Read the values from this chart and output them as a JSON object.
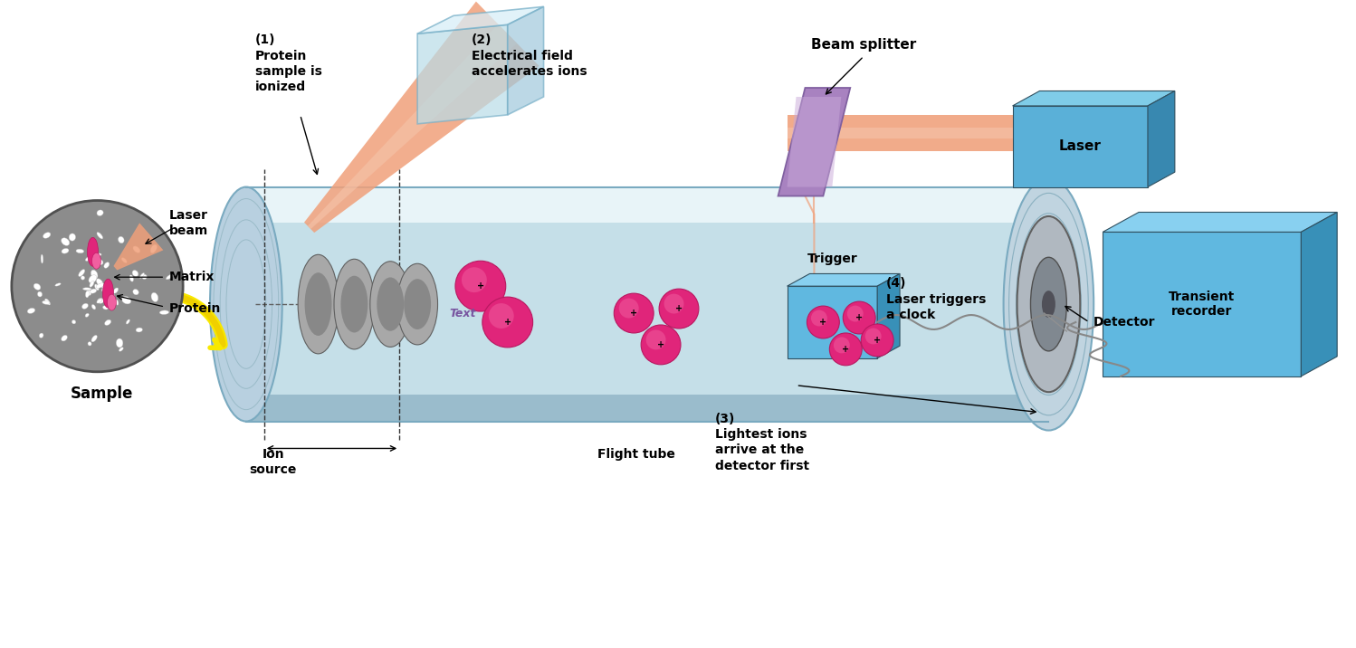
{
  "bg_color": "#ffffff",
  "labels": {
    "sample": "Sample",
    "laser_beam": "Laser\nbeam",
    "matrix": "Matrix",
    "protein": "Protein",
    "ion_source": "Ion\nsource",
    "flight_tube": "Flight tube",
    "detector": "Detector",
    "beam_splitter": "Beam splitter",
    "laser": "Laser",
    "trigger": "Trigger",
    "transient_recorder": "Transient\nrecorder",
    "step1": "(1)\nProtein\nsample is\nionized",
    "step2": "(2)\nElectrical field\naccelerates ions",
    "step3": "(3)\nLightest ions\narrive at the\ndetector first",
    "step4": "(4)\nLaser triggers\na clock",
    "text_label": "Text"
  },
  "colors": {
    "tube_fill": "#c5dfe8",
    "tube_fill2": "#daedf5",
    "tube_top": "#e8f4f8",
    "tube_bot": "#9abccc",
    "tube_edge": "#7aaac0",
    "disk_fill": "#a8a8a8",
    "disk_edge": "#606060",
    "disk_dark": "#888888",
    "beam_salmon": "#f0a07a",
    "beam_light": "#f5c4aa",
    "box_front": "#60b8e0",
    "box_top": "#88d0f0",
    "box_side": "#3890b8",
    "box_dark_front": "#3080b0",
    "laser_front": "#5ab0d8",
    "laser_top": "#7fcce8",
    "laser_side": "#3888b0",
    "splitter_color": "#a882c0",
    "splitter_dark": "#8060a0",
    "splitter_light": "#c8a8d8",
    "prism_fill": "#b8dce8",
    "prism_edge": "#78b0c8",
    "sample_gray": "#8c8c8c",
    "sample_edge": "#505050",
    "matrix_blob": "#e8e8e8",
    "matrix_blob_edge": "#c0c0c0",
    "ion_pink": "#e0257a",
    "ion_light": "#f060a0",
    "ion_edge": "#b81860",
    "yellow1": "#f8e800",
    "yellow2": "#f0d000",
    "connector": "#888888",
    "text_purple": "#7855a0",
    "dashed": "#333333"
  },
  "figsize": [
    14.98,
    7.16
  ],
  "dpi": 100
}
